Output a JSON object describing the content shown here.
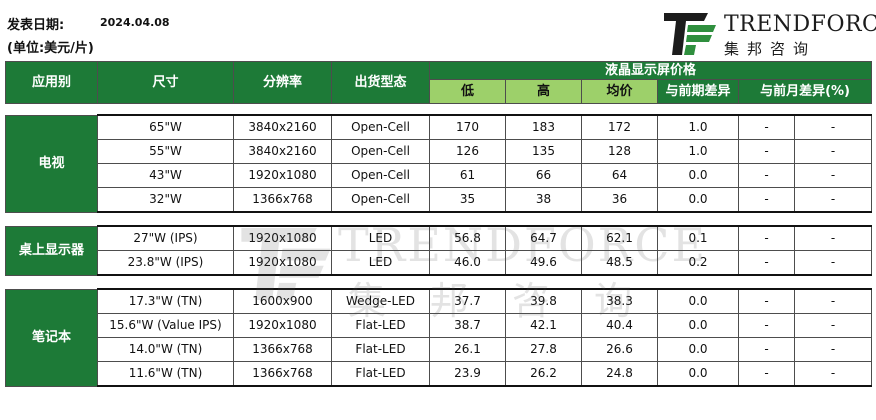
{
  "header": {
    "date_label": "发表日期:",
    "date_value": "2024.04.08",
    "unit_label": "(单位:美元/片)"
  },
  "logo": {
    "name_en": "TRENDFORCE",
    "name_cn": "集邦咨询",
    "colors": {
      "dark": "#1c1c1c",
      "green": "#2f8f3e"
    }
  },
  "watermark": {
    "name_en": "TRENDFORCE",
    "name_cn": "集邦咨询"
  },
  "columns": {
    "application": "应用别",
    "size": "尺寸",
    "resolution": "分辨率",
    "shipment_type": "出货型态",
    "price_group": "液晶显示屏价格",
    "low": "低",
    "high": "高",
    "avg": "均价",
    "vs_prev_period": "与前期差异",
    "vs_prev_month_pct": "与前月差异(%)"
  },
  "colors": {
    "header_dark": "#1d7a37",
    "header_light": "#9dd06a"
  },
  "groups": [
    {
      "category": "电视",
      "rows": [
        {
          "size": "65\"W",
          "resolution": "3840x2160",
          "type": "Open-Cell",
          "low": "170",
          "high": "183",
          "avg": "172",
          "diff": "1.0",
          "x1": "-",
          "x2": "-"
        },
        {
          "size": "55\"W",
          "resolution": "3840x2160",
          "type": "Open-Cell",
          "low": "126",
          "high": "135",
          "avg": "128",
          "diff": "1.0",
          "x1": "-",
          "x2": "-"
        },
        {
          "size": "43\"W",
          "resolution": "1920x1080",
          "type": "Open-Cell",
          "low": "61",
          "high": "66",
          "avg": "64",
          "diff": "0.0",
          "x1": "-",
          "x2": "-"
        },
        {
          "size": "32\"W",
          "resolution": "1366x768",
          "type": "Open-Cell",
          "low": "35",
          "high": "38",
          "avg": "36",
          "diff": "0.0",
          "x1": "-",
          "x2": "-"
        }
      ]
    },
    {
      "category": "桌上显示器",
      "rows": [
        {
          "size": "27\"W (IPS)",
          "resolution": "1920x1080",
          "type": "LED",
          "low": "56.8",
          "high": "64.7",
          "avg": "62.1",
          "diff": "0.1",
          "x1": "-",
          "x2": "-"
        },
        {
          "size": "23.8\"W (IPS)",
          "resolution": "1920x1080",
          "type": "LED",
          "low": "46.0",
          "high": "49.6",
          "avg": "48.5",
          "diff": "0.2",
          "x1": "-",
          "x2": "-"
        }
      ]
    },
    {
      "category": "笔记本",
      "rows": [
        {
          "size": "17.3\"W (TN)",
          "resolution": "1600x900",
          "type": "Wedge-LED",
          "low": "37.7",
          "high": "39.8",
          "avg": "38.3",
          "diff": "0.0",
          "x1": "-",
          "x2": "-"
        },
        {
          "size": "15.6\"W (Value IPS)",
          "resolution": "1920x1080",
          "type": "Flat-LED",
          "low": "38.7",
          "high": "42.1",
          "avg": "40.4",
          "diff": "0.0",
          "x1": "-",
          "x2": "-"
        },
        {
          "size": "14.0\"W (TN)",
          "resolution": "1366x768",
          "type": "Flat-LED",
          "low": "26.1",
          "high": "27.8",
          "avg": "26.6",
          "diff": "0.0",
          "x1": "-",
          "x2": "-"
        },
        {
          "size": "11.6\"W (TN)",
          "resolution": "1366x768",
          "type": "Flat-LED",
          "low": "23.9",
          "high": "26.2",
          "avg": "24.8",
          "diff": "0.0",
          "x1": "-",
          "x2": "-"
        }
      ]
    }
  ]
}
